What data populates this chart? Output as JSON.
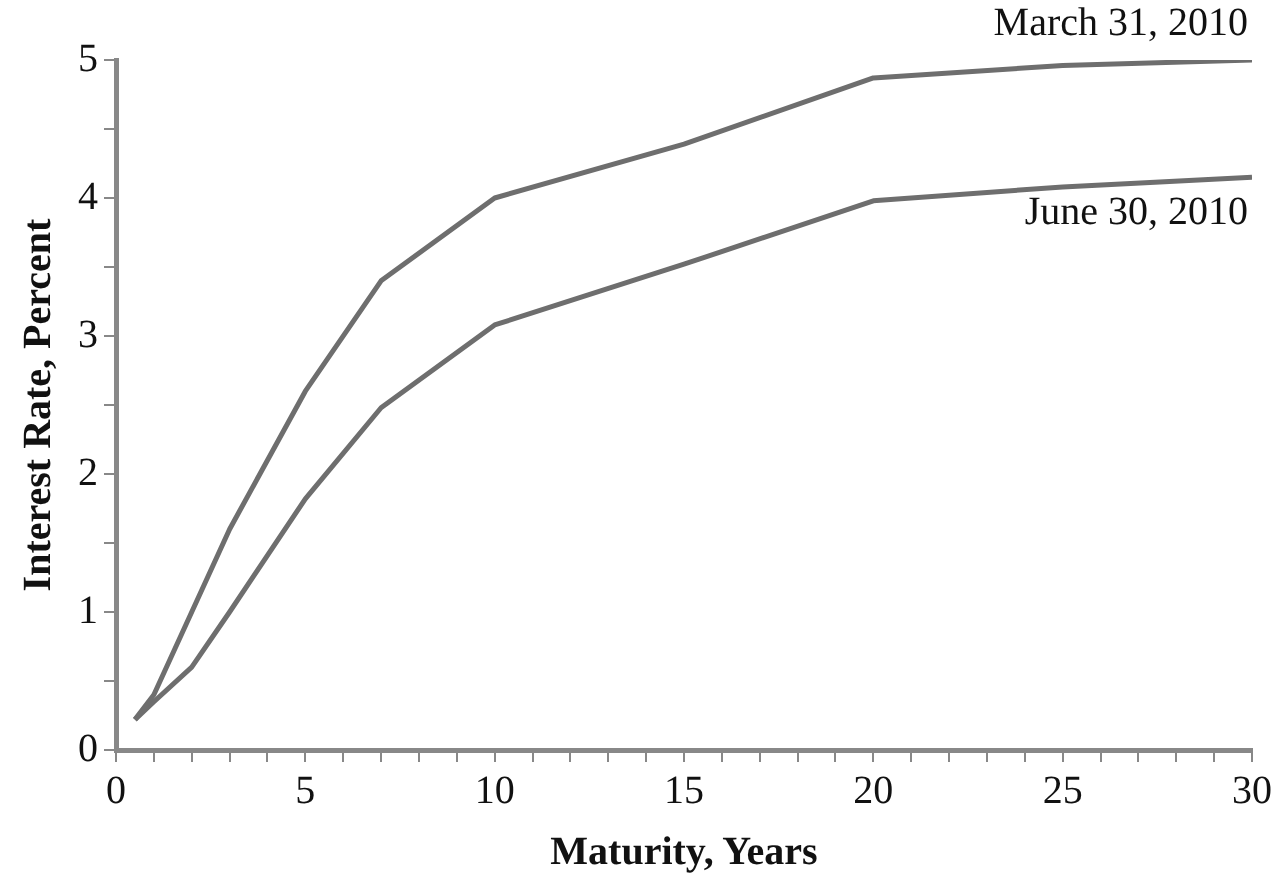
{
  "chart_data": {
    "type": "line",
    "xlabel": "Maturity, Years",
    "ylabel": "Interest Rate, Percent",
    "xlim": [
      0,
      30
    ],
    "xticks": [
      0,
      {
        "value": 1,
        "label": null
      },
      {
        "value": 2,
        "label": null
      },
      {
        "value": 3,
        "label": null
      },
      {
        "value": 4,
        "label": null
      },
      5,
      {
        "value": 6,
        "label": null
      },
      {
        "value": 7,
        "label": null
      },
      {
        "value": 8,
        "label": null
      },
      {
        "value": 9,
        "label": null
      },
      10,
      {
        "value": 11,
        "label": null
      },
      {
        "value": 12,
        "label": null
      },
      {
        "value": 13,
        "label": null
      },
      {
        "value": 14,
        "label": null
      },
      15,
      {
        "value": 16,
        "label": null
      },
      {
        "value": 17,
        "label": null
      },
      {
        "value": 18,
        "label": null
      },
      {
        "value": 19,
        "label": null
      },
      20,
      {
        "value": 21,
        "label": null
      },
      {
        "value": 22,
        "label": null
      },
      {
        "value": 23,
        "label": null
      },
      {
        "value": 24,
        "label": null
      },
      25,
      {
        "value": 26,
        "label": null
      },
      {
        "value": 27,
        "label": null
      },
      {
        "value": 28,
        "label": null
      },
      {
        "value": 29,
        "label": null
      },
      30
    ],
    "ylim": [
      0,
      5
    ],
    "yticks": [
      0,
      {
        "value": 0.5,
        "label": null
      },
      1,
      {
        "value": 1.5,
        "label": null
      },
      2,
      {
        "value": 2.5,
        "label": null
      },
      3,
      {
        "value": 3.5,
        "label": null
      },
      4,
      {
        "value": 4.5,
        "label": null
      },
      5
    ],
    "grid": false,
    "legend": false,
    "marker": "none",
    "line_style": "solid",
    "series": [
      {
        "name": "March 31, 2010",
        "color": "#6e6e6e",
        "x": [
          0.5,
          1,
          2,
          3,
          5,
          7,
          10,
          15,
          20,
          25,
          30
        ],
        "values": [
          0.22,
          0.4,
          1.0,
          1.6,
          2.6,
          3.4,
          4.0,
          4.39,
          4.87,
          4.96,
          5.0
        ]
      },
      {
        "name": "June 30, 2010",
        "color": "#6e6e6e",
        "x": [
          0.5,
          1,
          2,
          3,
          5,
          7,
          10,
          15,
          20,
          25,
          30
        ],
        "values": [
          0.22,
          0.35,
          0.6,
          1.0,
          1.82,
          2.48,
          3.08,
          3.52,
          3.98,
          4.08,
          4.15
        ]
      }
    ]
  }
}
